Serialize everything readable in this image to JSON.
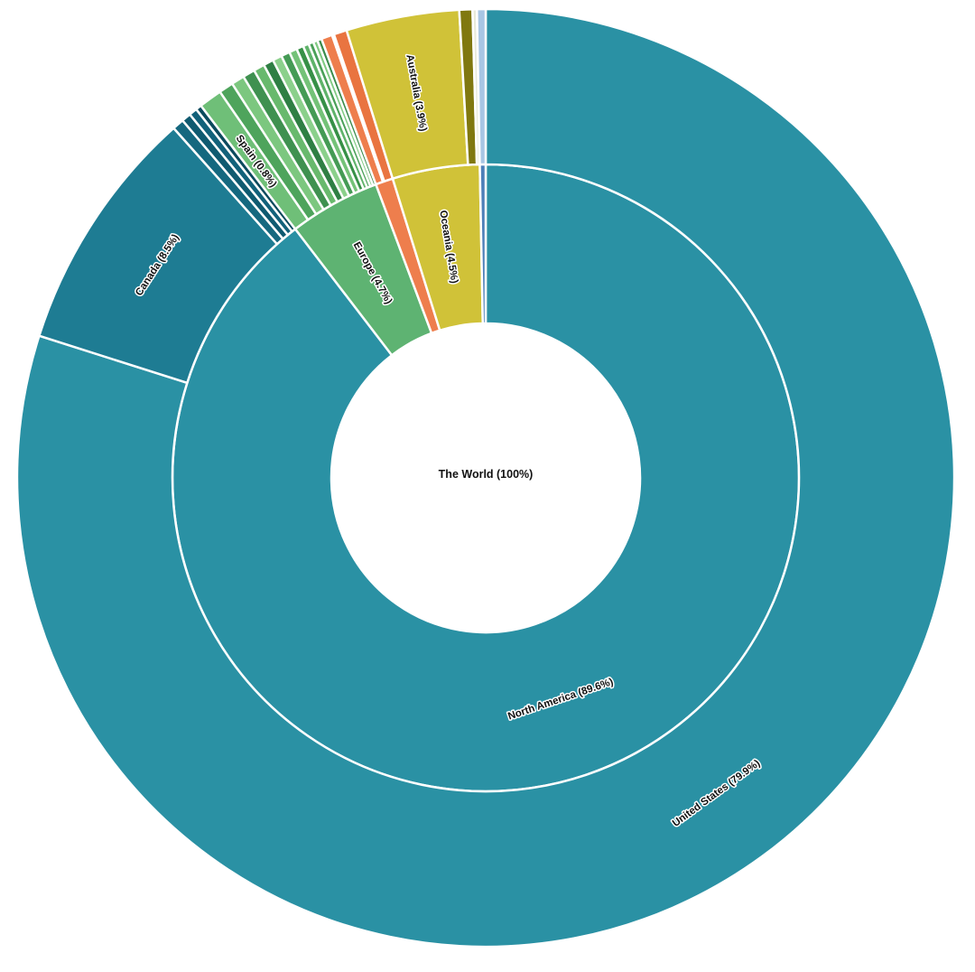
{
  "page": {
    "background_color": "#ffffff",
    "center_label": "The World (100%)"
  },
  "chart_data": {
    "type": "pie",
    "subtype": "sunburst",
    "title": "",
    "center_label": "The World (100%)",
    "total_percent": 100,
    "label_text_color": "#111111",
    "label_halo_color": "#ffffff",
    "legend": "none",
    "rings": [
      {
        "name": "continents",
        "inner_radius": 171,
        "outer_radius": 347,
        "segments": [
          {
            "label": "North America (89.6%)",
            "value": 89.6,
            "color": "#2a91a4"
          },
          {
            "label": "Europe (4.7%)",
            "value": 4.7,
            "color": "#5eb372"
          },
          {
            "label": "",
            "value": 0.9,
            "color": "#ee7e4d"
          },
          {
            "label": "Oceania (4.5%)",
            "value": 4.5,
            "color": "#d0c238"
          },
          {
            "label": "",
            "value": 0.3,
            "color": "#4d7fb9"
          }
        ]
      },
      {
        "name": "countries",
        "inner_radius": 347,
        "outer_radius": 519,
        "segments": [
          {
            "label": "United States (79.9%)",
            "value": 79.9,
            "color": "#2a91a4"
          },
          {
            "label": "Canada (8.5%)",
            "value": 8.5,
            "color": "#1e7c93"
          },
          {
            "label": "",
            "value": 0.4,
            "color": "#15687f"
          },
          {
            "label": "",
            "value": 0.32,
            "color": "#0f5a70"
          },
          {
            "label": "",
            "value": 0.28,
            "color": "#12617a"
          },
          {
            "label": "",
            "value": 0.2,
            "color": "#0c4a5e"
          },
          {
            "label": "Spain (0.8%)",
            "value": 0.8,
            "color": "#6fbf78"
          },
          {
            "label": "",
            "value": 0.5,
            "color": "#4ea45c"
          },
          {
            "label": "",
            "value": 0.45,
            "color": "#7cc77f"
          },
          {
            "label": "",
            "value": 0.42,
            "color": "#3f9150"
          },
          {
            "label": "",
            "value": 0.38,
            "color": "#68b96d"
          },
          {
            "label": "",
            "value": 0.35,
            "color": "#2f7f44"
          },
          {
            "label": "",
            "value": 0.32,
            "color": "#8bd08b"
          },
          {
            "label": "",
            "value": 0.3,
            "color": "#459b55"
          },
          {
            "label": "",
            "value": 0.27,
            "color": "#74c278"
          },
          {
            "label": "",
            "value": 0.24,
            "color": "#379047"
          },
          {
            "label": "",
            "value": 0.2,
            "color": "#5fb36a"
          },
          {
            "label": "",
            "value": 0.17,
            "color": "#4aa058"
          },
          {
            "label": "",
            "value": 0.15,
            "color": "#80ca82"
          },
          {
            "label": "",
            "value": 0.15,
            "color": "#3a8b4b"
          },
          {
            "label": "",
            "value": 0.38,
            "color": "#ee7e4d"
          },
          {
            "label": "",
            "value": 0.07,
            "color": "#f3e6d4"
          },
          {
            "label": "",
            "value": 0.45,
            "color": "#e97440"
          },
          {
            "label": "Australia (3.9%)",
            "value": 3.9,
            "color": "#d0c238"
          },
          {
            "label": "",
            "value": 0.45,
            "color": "#80780f"
          },
          {
            "label": "",
            "value": 0.15,
            "color": "#e9ead9"
          },
          {
            "label": "",
            "value": 0.3,
            "color": "#a8c6e4"
          }
        ]
      }
    ]
  }
}
